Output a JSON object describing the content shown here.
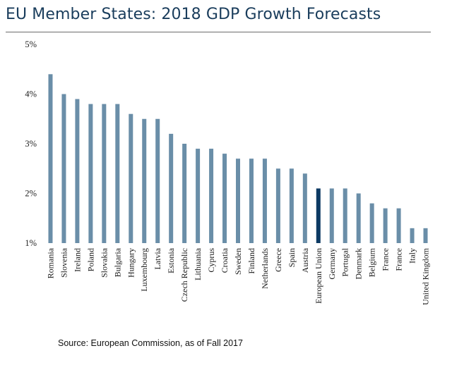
{
  "title": "EU Member States: 2018 GDP Growth Forecasts",
  "source": "Source: European Commission, as of Fall 2017",
  "colors": {
    "bar": "#6a8ea8",
    "highlight": "#0d3a63",
    "text": "#1a3d5c"
  },
  "chart_data": {
    "type": "bar",
    "title": "EU Member States: 2018 GDP Growth Forecasts",
    "xlabel": "",
    "ylabel": "",
    "ylim": [
      1,
      5
    ],
    "yticks": [
      "1%",
      "2%",
      "3%",
      "4%",
      "5%"
    ],
    "grid": false,
    "highlight_category": "European Union",
    "categories": [
      "Romania",
      "Slovenia",
      "Ireland",
      "Poland",
      "Slovakia",
      "Bulgaria",
      "Hungary",
      "Luxembourg",
      "Latvia",
      "Estonia",
      "Czech Republic",
      "Lithuania",
      "Cyprus",
      "Croatia",
      "Sweden",
      "Finland",
      "Netherlands",
      "Greece",
      "Spain",
      "Austria",
      "European Union",
      "Germany",
      "Portugal",
      "Denmark",
      "Belgium",
      "France",
      "France",
      "Italy",
      "United Kingdom"
    ],
    "values": [
      4.4,
      4.0,
      3.9,
      3.8,
      3.8,
      3.8,
      3.6,
      3.5,
      3.5,
      3.2,
      3.0,
      2.9,
      2.9,
      2.8,
      2.7,
      2.7,
      2.7,
      2.5,
      2.5,
      2.4,
      2.1,
      2.1,
      2.1,
      2.0,
      1.8,
      1.7,
      1.7,
      1.3,
      1.3
    ]
  }
}
